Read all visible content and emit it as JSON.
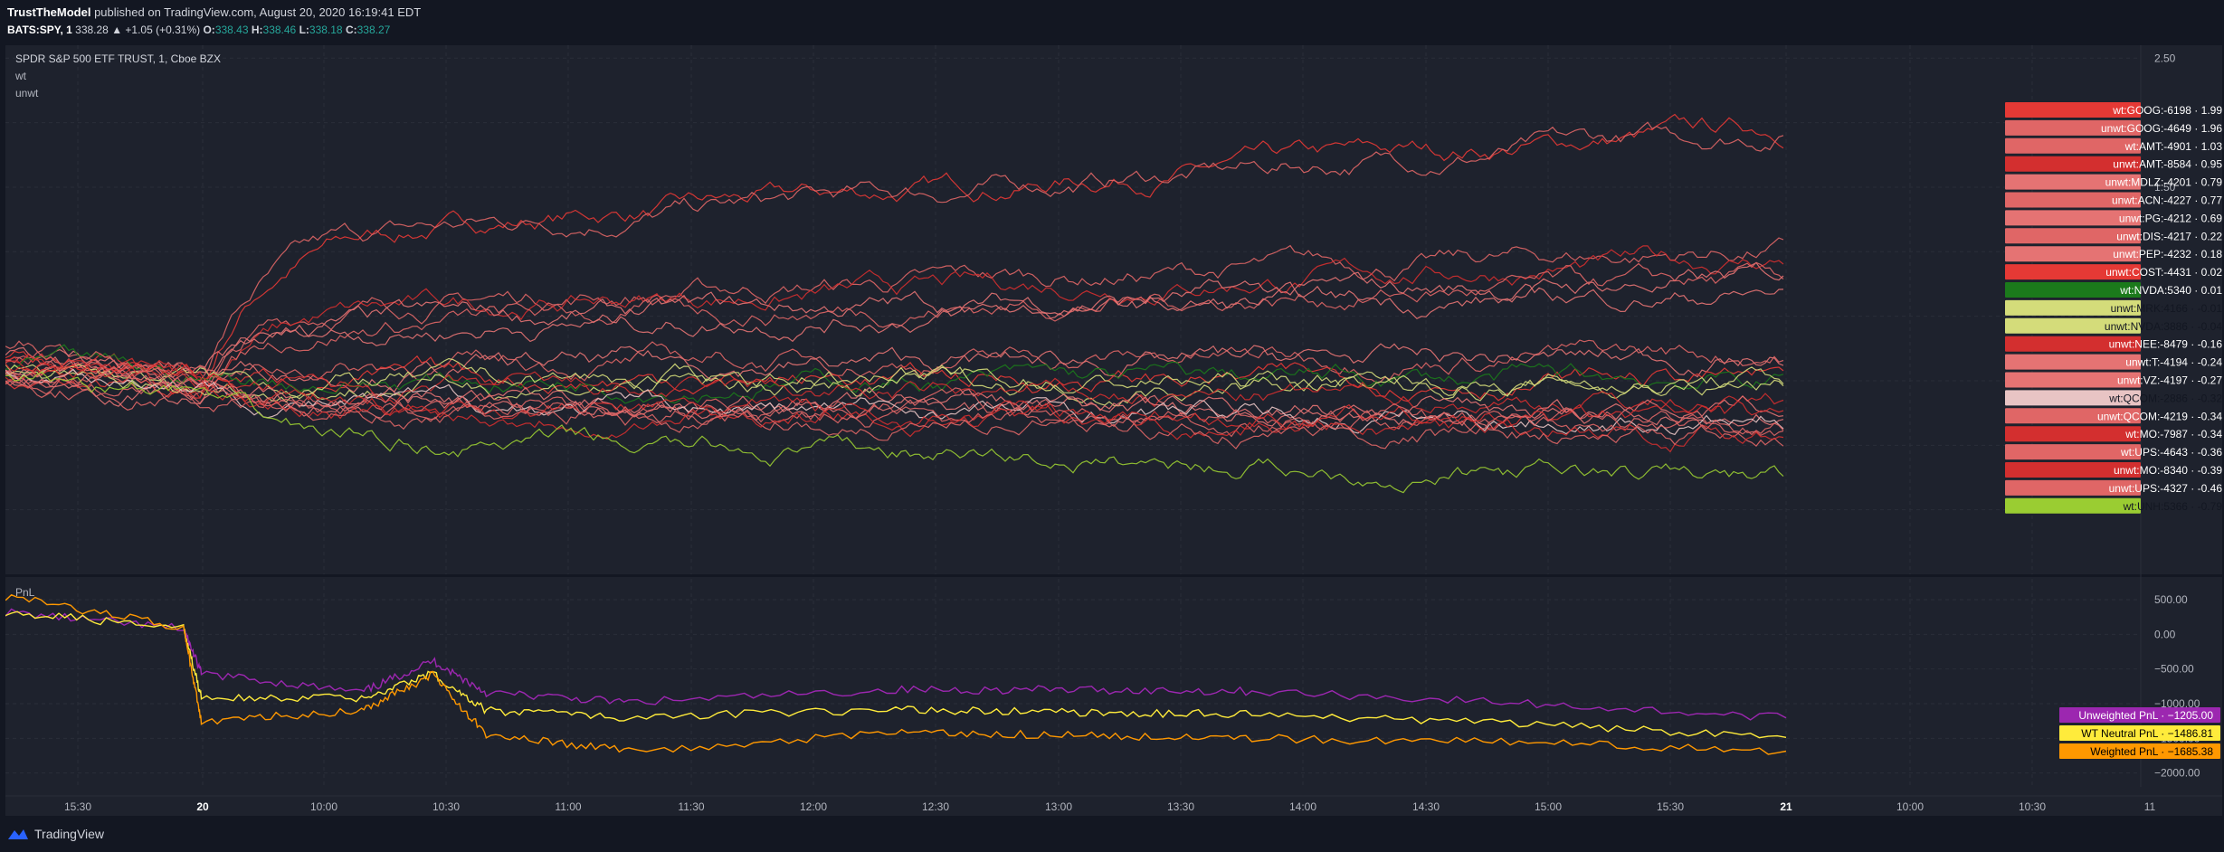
{
  "header": {
    "author": "TrustTheModel",
    "published": "published on TradingView.com, August 20, 2020 16:19:41 EDT",
    "symbol": "BATS:SPY, 1",
    "price": "338.28",
    "change": "▲ +1.05 (+0.31%)",
    "o_label": "O:",
    "o": "338.43",
    "h_label": "H:",
    "h": "338.46",
    "l_label": "L:",
    "l": "338.18",
    "c_label": "C:",
    "c": "338.27"
  },
  "legend": {
    "instrument": "SPDR S&P 500 ETF TRUST, 1, Cboe BZX",
    "series1": "wt",
    "series2": "unwt",
    "pnl": "PnL"
  },
  "chart_data": [
    {
      "type": "line",
      "panel": "main",
      "ylim": [
        -1.5,
        2.6
      ],
      "y_ticks": [
        "2.50",
        "1.50"
      ],
      "x_ticks": [
        "15:30",
        "20",
        "10:00",
        "10:30",
        "11:00",
        "11:30",
        "12:00",
        "12:30",
        "13:00",
        "13:30",
        "14:00",
        "14:30",
        "15:00",
        "15:30",
        "21",
        "10:00",
        "10:30",
        "11"
      ],
      "labels": [
        {
          "name": "wt:GOOG:-6198",
          "value": "1.99",
          "color": "#e53935"
        },
        {
          "name": "unwt:GOOG:-4649",
          "value": "1.96",
          "color": "#e06666"
        },
        {
          "name": "wt:AMT:-4901",
          "value": "1.03",
          "color": "#e06666"
        },
        {
          "name": "unwt:AMT:-8584",
          "value": "0.95",
          "color": "#d32f2f"
        },
        {
          "name": "unwt:MDLZ:-4201",
          "value": "0.79",
          "color": "#e57373"
        },
        {
          "name": "unwt:ACN:-4227",
          "value": "0.77",
          "color": "#e06666"
        },
        {
          "name": "unwt:PG:-4212",
          "value": "0.69",
          "color": "#e57373"
        },
        {
          "name": "unwt:DIS:-4217",
          "value": "0.22",
          "color": "#e06666"
        },
        {
          "name": "unwt:PEP:-4232",
          "value": "0.18",
          "color": "#e57373"
        },
        {
          "name": "unwt:COST:-4431",
          "value": "0.02",
          "color": "#e53935"
        },
        {
          "name": "wt:NVDA:5340",
          "value": "0.01",
          "color": "#1b7a1b"
        },
        {
          "name": "unwt:MRK:4166",
          "value": "-0.01",
          "color": "#d4dc7a"
        },
        {
          "name": "unwt:NVDA:3886",
          "value": "-0.04",
          "color": "#d4dc7a"
        },
        {
          "name": "unwt:NEE:-8479",
          "value": "-0.16",
          "color": "#d32f2f"
        },
        {
          "name": "unwt:T:-4194",
          "value": "-0.24",
          "color": "#e57373"
        },
        {
          "name": "unwt:VZ:-4197",
          "value": "-0.27",
          "color": "#e57373"
        },
        {
          "name": "wt:QCOM:-2886",
          "value": "-0.32",
          "color": "#e8c4c4"
        },
        {
          "name": "unwt:QCOM:-4219",
          "value": "-0.34",
          "color": "#e06666"
        },
        {
          "name": "wt:MO:-7987",
          "value": "-0.34",
          "color": "#d32f2f"
        },
        {
          "name": "wt:UPS:-4643",
          "value": "-0.36",
          "color": "#e06666"
        },
        {
          "name": "unwt:MO:-8340",
          "value": "-0.39",
          "color": "#d32f2f"
        },
        {
          "name": "unwt:UPS:-4327",
          "value": "-0.46",
          "color": "#e06666"
        },
        {
          "name": "wt:UNH:5366",
          "value": "-0.79",
          "color": "#9acd32"
        }
      ]
    },
    {
      "type": "line",
      "panel": "pnl",
      "ylim": [
        -2200,
        800
      ],
      "y_ticks": [
        "500.00",
        "0.00",
        "−500.00",
        "−1000.00",
        "−1500.00",
        "−2000.00"
      ],
      "series": [
        {
          "name": "Unweighted PnL",
          "value": "−1205.00",
          "color": "#9c27b0",
          "label_color": "#ffffff",
          "points": [
            [
              0,
              320
            ],
            [
              0.1,
              80
            ],
            [
              0.11,
              -560
            ],
            [
              0.2,
              -840
            ],
            [
              0.24,
              -380
            ],
            [
              0.27,
              -840
            ],
            [
              0.35,
              -980
            ],
            [
              0.5,
              -800
            ],
            [
              0.6,
              -800
            ],
            [
              0.7,
              -820
            ],
            [
              0.85,
              -990
            ],
            [
              1,
              -1205
            ]
          ]
        },
        {
          "name": "WT Neutral PnL",
          "value": "−1486.81",
          "color": "#ffeb3b",
          "label_color": "#000000",
          "points": [
            [
              0,
              330
            ],
            [
              0.1,
              80
            ],
            [
              0.11,
              -900
            ],
            [
              0.2,
              -920
            ],
            [
              0.24,
              -560
            ],
            [
              0.27,
              -1100
            ],
            [
              0.35,
              -1200
            ],
            [
              0.5,
              -1080
            ],
            [
              0.6,
              -1130
            ],
            [
              0.7,
              -1150
            ],
            [
              0.85,
              -1280
            ],
            [
              1,
              -1487
            ]
          ]
        },
        {
          "name": "Weighted PnL",
          "value": "−1685.38",
          "color": "#ff9800",
          "label_color": "#000000",
          "points": [
            [
              0,
              550
            ],
            [
              0.1,
              100
            ],
            [
              0.11,
              -1250
            ],
            [
              0.2,
              -1100
            ],
            [
              0.24,
              -580
            ],
            [
              0.27,
              -1450
            ],
            [
              0.35,
              -1680
            ],
            [
              0.5,
              -1430
            ],
            [
              0.6,
              -1450
            ],
            [
              0.7,
              -1500
            ],
            [
              0.85,
              -1560
            ],
            [
              1,
              -1685
            ]
          ]
        }
      ]
    }
  ],
  "footer": {
    "brand": "TradingView"
  }
}
